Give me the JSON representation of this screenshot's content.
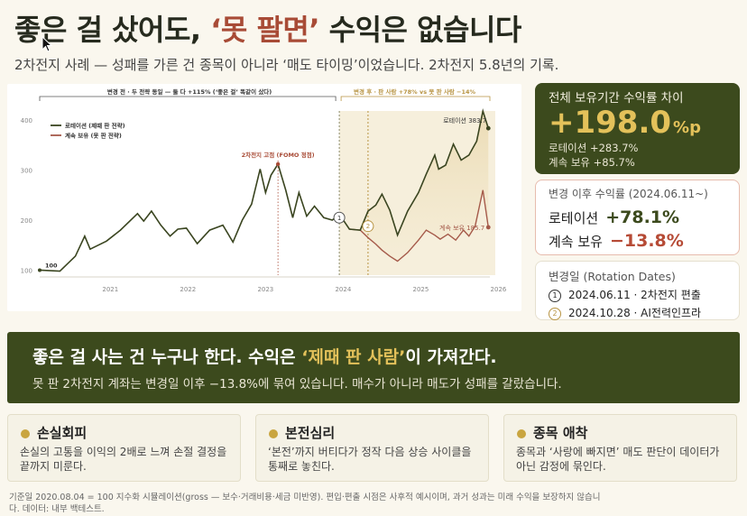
{
  "header": {
    "title_pre": "좋은 걸 샀어도, ",
    "title_highlight": "‘못 팔면’",
    "title_post": " 수익은 없습니다",
    "subtitle": "2차전지 사례 — 성패를 가른 건 종목이 아니라 ‘매도 타이밍’이었습니다. 2차전지 5.8년의 기록."
  },
  "chart_data": {
    "type": "line",
    "x_ticks": [
      "2021",
      "2022",
      "2023",
      "2024",
      "2025",
      "2026"
    ],
    "y_ticks": [
      100,
      200,
      300,
      400
    ],
    "ylim": [
      90,
      440
    ],
    "xlim": [
      2020.59,
      2026.39
    ],
    "series": [
      {
        "name": "로테이션 (제때 판 전략)",
        "color": "#3a4520",
        "points": [
          [
            2020.59,
            100
          ],
          [
            2020.85,
            98
          ],
          [
            2021.05,
            128
          ],
          [
            2021.17,
            168
          ],
          [
            2021.24,
            142
          ],
          [
            2021.45,
            158
          ],
          [
            2021.63,
            180
          ],
          [
            2021.85,
            213
          ],
          [
            2021.93,
            198
          ],
          [
            2022.03,
            218
          ],
          [
            2022.15,
            190
          ],
          [
            2022.27,
            168
          ],
          [
            2022.37,
            182
          ],
          [
            2022.48,
            184
          ],
          [
            2022.62,
            153
          ],
          [
            2022.78,
            180
          ],
          [
            2022.95,
            190
          ],
          [
            2023.08,
            156
          ],
          [
            2023.2,
            200
          ],
          [
            2023.32,
            232
          ],
          [
            2023.43,
            302
          ],
          [
            2023.5,
            255
          ],
          [
            2023.57,
            290
          ],
          [
            2023.66,
            312
          ],
          [
            2023.76,
            260
          ],
          [
            2023.85,
            205
          ],
          [
            2023.93,
            255
          ],
          [
            2024.03,
            208
          ],
          [
            2024.13,
            228
          ],
          [
            2024.25,
            205
          ],
          [
            2024.36,
            200
          ],
          [
            2024.45,
            212
          ],
          [
            2024.58,
            182
          ],
          [
            2024.72,
            180
          ],
          [
            2024.82,
            218
          ],
          [
            2024.92,
            230
          ],
          [
            2025.0,
            252
          ],
          [
            2025.1,
            220
          ],
          [
            2025.2,
            170
          ],
          [
            2025.33,
            218
          ],
          [
            2025.47,
            255
          ],
          [
            2025.57,
            292
          ],
          [
            2025.68,
            330
          ],
          [
            2025.73,
            302
          ],
          [
            2025.82,
            310
          ],
          [
            2025.92,
            352
          ],
          [
            2026.02,
            320
          ],
          [
            2026.12,
            330
          ],
          [
            2026.22,
            358
          ],
          [
            2026.3,
            418
          ],
          [
            2026.37,
            383.7
          ]
        ]
      },
      {
        "name": "계속 보유 (못 판 전략)",
        "color": "#a55a4a",
        "points": [
          [
            2024.58,
            182
          ],
          [
            2024.72,
            180
          ],
          [
            2024.82,
            165
          ],
          [
            2024.92,
            152
          ],
          [
            2025.0,
            140
          ],
          [
            2025.1,
            128
          ],
          [
            2025.2,
            118
          ],
          [
            2025.33,
            135
          ],
          [
            2025.47,
            160
          ],
          [
            2025.57,
            180
          ],
          [
            2025.68,
            170
          ],
          [
            2025.75,
            162
          ],
          [
            2025.85,
            172
          ],
          [
            2025.95,
            160
          ],
          [
            2026.05,
            180
          ],
          [
            2026.12,
            168
          ],
          [
            2026.2,
            188
          ],
          [
            2026.3,
            260
          ],
          [
            2026.37,
            185.7
          ]
        ]
      }
    ],
    "annotations": {
      "start_label": "100",
      "peak_label": "2차전지 고점 (FOMO 정점)",
      "rotation_end_label": "로테이션 383.7",
      "hold_end_label": "계속 보유 185.7",
      "before_bracket": "변경 전 · 두 전략 동일 — 둘 다 +115% (‘좋은 걸’ 똑같이 샀다)",
      "after_bracket": "변경 후 · 판 사람 +78% vs 못 판 사람 −14%",
      "marker1": "1",
      "marker2": "2"
    },
    "legend": "top-left",
    "grid": false
  },
  "summary_card": {
    "title": "전체 보유기간 수익률 차이",
    "big_value": "+198.0",
    "big_unit": "%p",
    "rotation_row": "로테이션 +283.7%",
    "hold_row": "계속 보유 +85.7%"
  },
  "after_card": {
    "title": "변경 이후 수익률 (2024.06.11~)",
    "rotation_label": "로테이션",
    "rotation_value": "+78.1%",
    "hold_label": "계속 보유",
    "hold_value": "−13.8%"
  },
  "dates_card": {
    "title": "변경일 (Rotation Dates)",
    "d1_num": "1",
    "d1_text": "2024.06.11 · 2차전지 편출",
    "d2_num": "2",
    "d2_text": "2024.10.28 · AI전력인프라"
  },
  "banner": {
    "title_pre": "좋은 걸 사는 건 누구나 한다. 수익은 ",
    "title_highlight": "‘제때 판 사람’",
    "title_post": "이 가져간다.",
    "sub": "못 판 2차전지 계좌는 변경일 이후 −13.8%에 묶여 있습니다. 매수가 아니라 매도가 성패를 갈랐습니다."
  },
  "concepts": [
    {
      "title": "손실회피",
      "body": "손실의 고통을 이익의 2배로 느껴 손절 결정을 끝까지 미룬다."
    },
    {
      "title": "본전심리",
      "body": "‘본전’까지 버티다가 정작 다음 상승 사이클을 통째로 놓친다."
    },
    {
      "title": "종목 애착",
      "body": "종목과 ‘사랑에 빠지면’ 매도 판단이 데이터가 아닌 감정에 묶인다."
    }
  ],
  "footnote": "기준일 2020.08.04 = 100 지수화 시뮬레이션(gross — 보수·거래비용·세금 미반영). 편입·편출 시점은 사후적 예시이며, 과거 성과는 미래 수익을 보장하지 않습니다. 데이터: 내부 백테스트."
}
